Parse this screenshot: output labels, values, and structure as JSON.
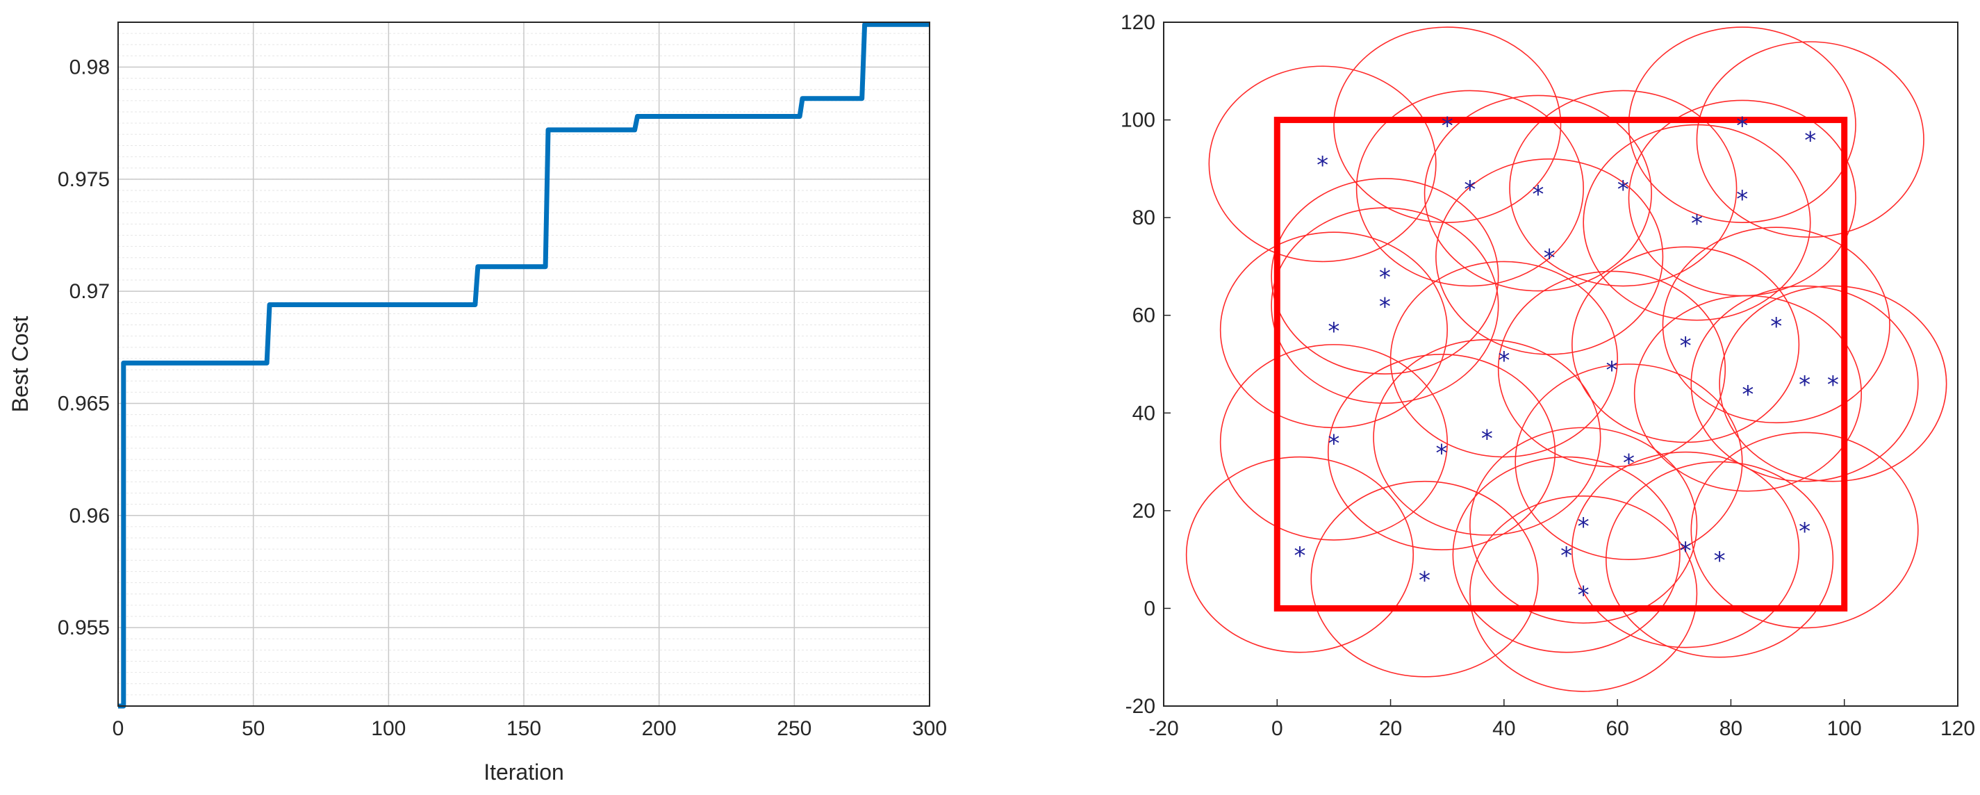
{
  "chart_data": [
    {
      "type": "line",
      "xlabel": "Iteration",
      "ylabel": "Best Cost",
      "xlim": [
        0,
        300
      ],
      "ylim": [
        0.9515,
        0.982
      ],
      "xticks": [
        0,
        50,
        100,
        150,
        200,
        250,
        300
      ],
      "yticks": [
        0.955,
        0.96,
        0.965,
        0.97,
        0.975,
        0.98
      ],
      "ytick_labels": [
        "0.955",
        "0.96",
        "0.965",
        "0.97",
        "0.975",
        "0.98"
      ],
      "grid": "major and minor",
      "color": "#0072bd",
      "series": [
        {
          "x": [
            0,
            2,
            2,
            55,
            56,
            132,
            133,
            158,
            159,
            191,
            192,
            252,
            253,
            275,
            276,
            300
          ],
          "values": [
            0.9515,
            0.9515,
            0.9668,
            0.9668,
            0.9694,
            0.9694,
            0.9711,
            0.9711,
            0.9772,
            0.9772,
            0.9778,
            0.9778,
            0.9786,
            0.9786,
            0.9819,
            0.9819
          ]
        }
      ]
    },
    {
      "type": "scatter",
      "xlim": [
        -20,
        120
      ],
      "ylim": [
        -20,
        120
      ],
      "xticks": [
        -20,
        0,
        20,
        40,
        60,
        80,
        100,
        120
      ],
      "yticks": [
        -20,
        0,
        20,
        40,
        60,
        80,
        100,
        120
      ],
      "grid": false,
      "region": {
        "x": [
          0,
          100
        ],
        "y": [
          0,
          100
        ],
        "color": "#ff0000"
      },
      "sensing_radius": 20,
      "circle_color": "#ff2a2a",
      "marker": "*",
      "marker_color": "#1f1f9a",
      "points": [
        [
          30,
          99
        ],
        [
          82,
          99
        ],
        [
          8,
          91
        ],
        [
          94,
          96
        ],
        [
          34,
          86
        ],
        [
          46,
          85
        ],
        [
          61,
          86
        ],
        [
          82,
          84
        ],
        [
          74,
          79
        ],
        [
          48,
          72
        ],
        [
          19,
          68
        ],
        [
          19,
          62
        ],
        [
          10,
          57
        ],
        [
          88,
          58
        ],
        [
          72,
          54
        ],
        [
          40,
          51
        ],
        [
          59,
          49
        ],
        [
          83,
          44
        ],
        [
          93,
          46
        ],
        [
          98,
          46
        ],
        [
          10,
          34
        ],
        [
          37,
          35
        ],
        [
          29,
          32
        ],
        [
          62,
          30
        ],
        [
          54,
          17
        ],
        [
          93,
          16
        ],
        [
          4,
          11
        ],
        [
          51,
          11
        ],
        [
          72,
          12
        ],
        [
          78,
          10
        ],
        [
          26,
          6
        ],
        [
          54,
          3
        ]
      ]
    }
  ]
}
